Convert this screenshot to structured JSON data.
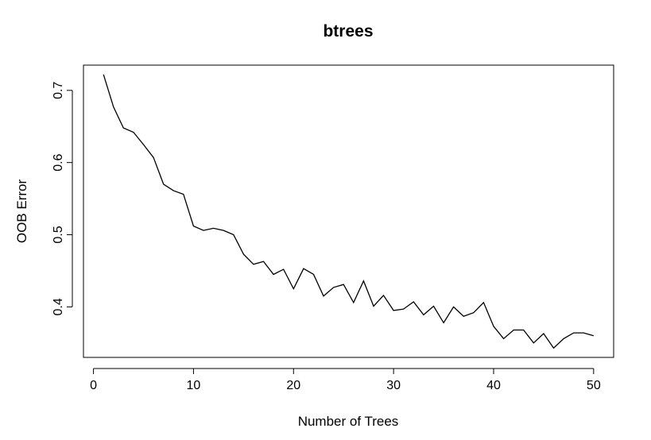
{
  "chart_data": {
    "type": "line",
    "title": "btrees",
    "xlabel": "Number of Trees",
    "ylabel": "OOB Error",
    "xlim": [
      -1,
      52
    ],
    "ylim": [
      0.33,
      0.735
    ],
    "xticks": [
      0,
      10,
      20,
      30,
      40,
      50
    ],
    "yticks": [
      0.4,
      0.5,
      0.6,
      0.7
    ],
    "grid": false,
    "x": [
      1,
      2,
      3,
      4,
      5,
      6,
      7,
      8,
      9,
      10,
      11,
      12,
      13,
      14,
      15,
      16,
      17,
      18,
      19,
      20,
      21,
      22,
      23,
      24,
      25,
      26,
      27,
      28,
      29,
      30,
      31,
      32,
      33,
      34,
      35,
      36,
      37,
      38,
      39,
      40,
      41,
      42,
      43,
      44,
      45,
      46,
      47,
      48,
      49,
      50
    ],
    "y": [
      0.722,
      0.677,
      0.648,
      0.642,
      0.625,
      0.607,
      0.57,
      0.561,
      0.556,
      0.512,
      0.506,
      0.509,
      0.506,
      0.5,
      0.473,
      0.459,
      0.463,
      0.445,
      0.452,
      0.425,
      0.453,
      0.445,
      0.415,
      0.427,
      0.431,
      0.406,
      0.436,
      0.401,
      0.416,
      0.395,
      0.397,
      0.407,
      0.389,
      0.401,
      0.378,
      0.4,
      0.387,
      0.392,
      0.406,
      0.373,
      0.356,
      0.368,
      0.368,
      0.35,
      0.363,
      0.343,
      0.356,
      0.364,
      0.364,
      0.36
    ]
  }
}
